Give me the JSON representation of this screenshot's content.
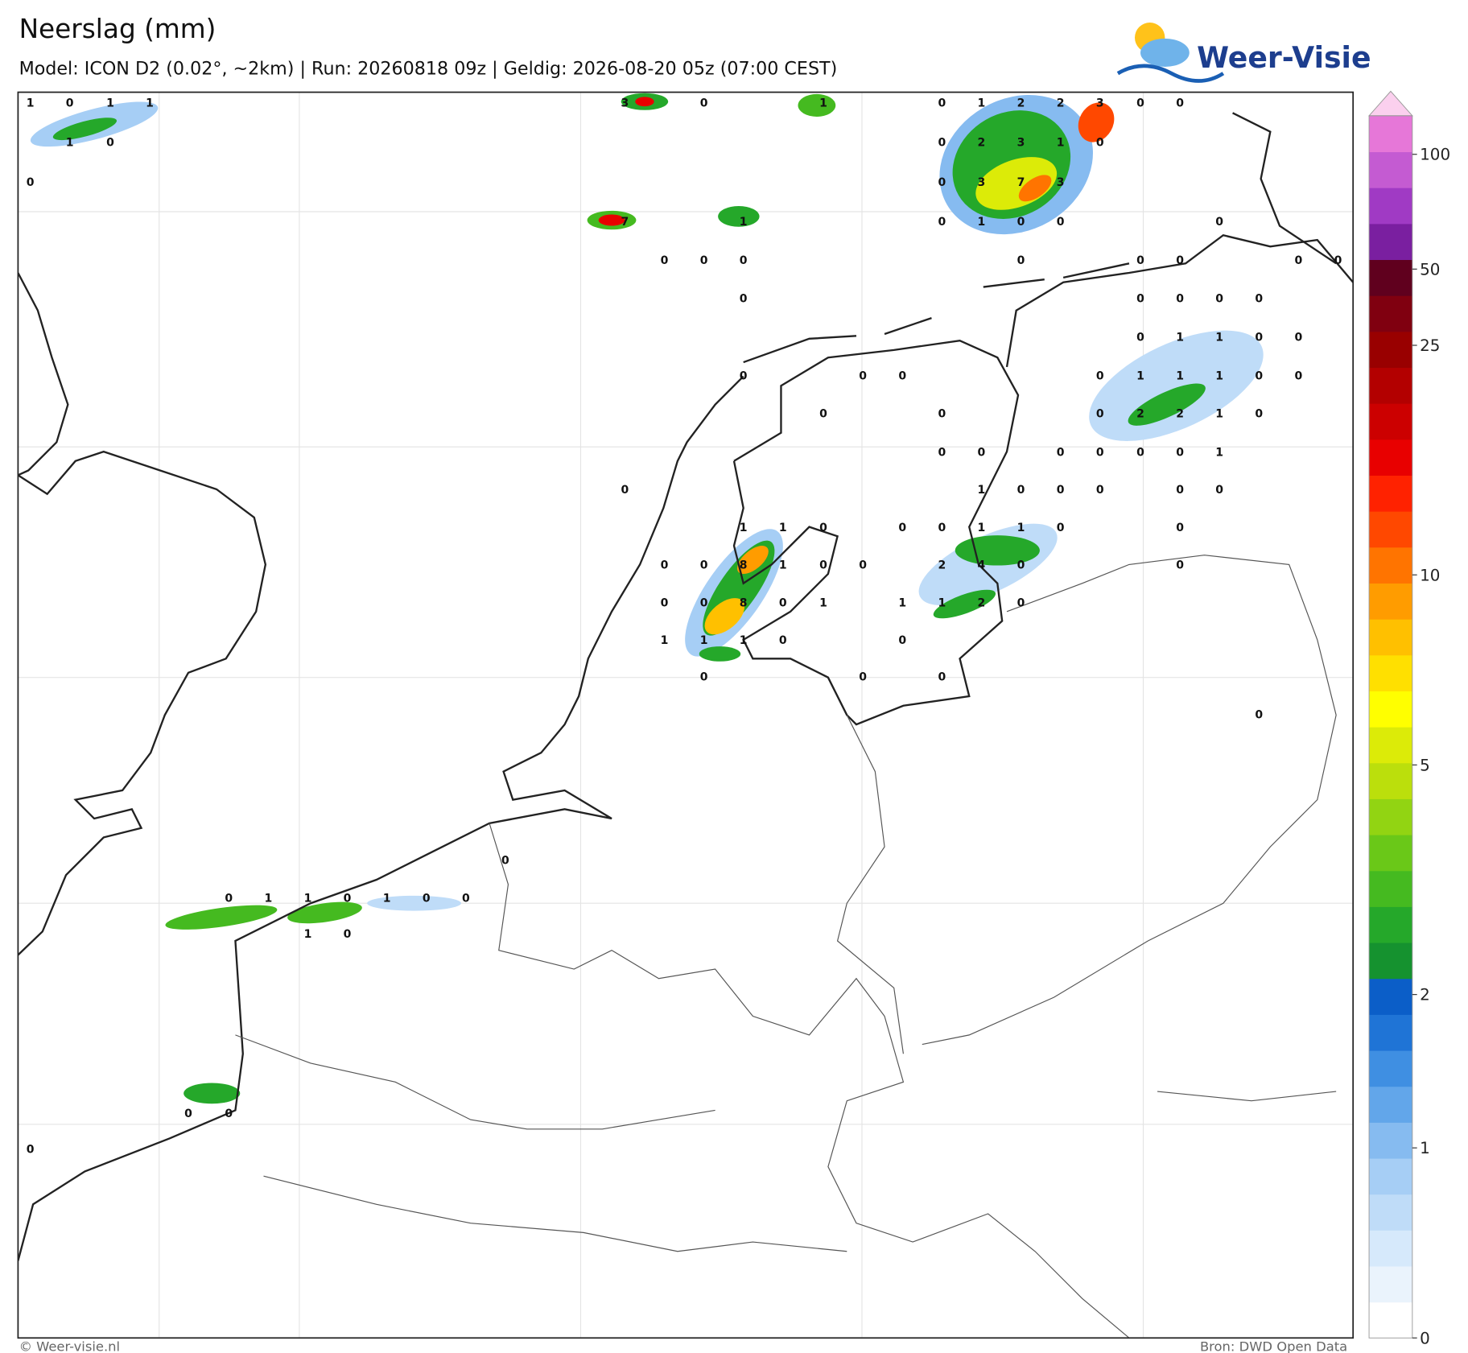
{
  "header": {
    "title": "Neerslag (mm)",
    "subtitle": "Model: ICON D2 (0.02°, ~2km)  |  Run: 20260818 09z  |  Geldig: 2026-08-20 05z (07:00 CEST)",
    "logo": "Weer-Visie"
  },
  "colorbar": {
    "ticks": [
      0,
      1,
      2,
      5,
      10,
      25,
      50,
      100
    ],
    "colors": [
      "#ffffff",
      "#eaf3fc",
      "#d6e9fb",
      "#bfdcf8",
      "#a6cef5",
      "#86bbf0",
      "#62a6ea",
      "#3f8fe2",
      "#1f74d6",
      "#0b5ec8",
      "#15922f",
      "#25a82a",
      "#45ba20",
      "#6ac818",
      "#92d412",
      "#bbdf0c",
      "#dceb08",
      "#ffff00",
      "#ffe000",
      "#ffc000",
      "#ff9c00",
      "#ff7400",
      "#ff4800",
      "#ff2200",
      "#e80000",
      "#cc0000",
      "#b30000",
      "#990000",
      "#800010",
      "#60001e",
      "#7a1fa0",
      "#a03ac4",
      "#c45bd2",
      "#e677d8"
    ],
    "top_color": "#fbd0ee"
  },
  "precip_labels": [
    1,
    0,
    1,
    1,
    3,
    0,
    1,
    0,
    1,
    2,
    2,
    3,
    0,
    0,
    1,
    0,
    0,
    2,
    3,
    1,
    0,
    0,
    0,
    3,
    7,
    3,
    7,
    1,
    0,
    1,
    0,
    0,
    0,
    0,
    0,
    0,
    0,
    0,
    0,
    0,
    0,
    0,
    0,
    0,
    0,
    0,
    0,
    1,
    1,
    0,
    0,
    0,
    0,
    0,
    0,
    1,
    1,
    1,
    0,
    0,
    0,
    0,
    0,
    2,
    2,
    1,
    0,
    0,
    0,
    0,
    0,
    0,
    0,
    1,
    0,
    1,
    0,
    0,
    0,
    0,
    0,
    1,
    1,
    0,
    0,
    0,
    1,
    1,
    0,
    0,
    0,
    0,
    8,
    1,
    0,
    0,
    2,
    4,
    0,
    0,
    0,
    0,
    8,
    0,
    1,
    1,
    1,
    2,
    0,
    1,
    1,
    1,
    0,
    0,
    0,
    0,
    0,
    0,
    0,
    0,
    1,
    1,
    0,
    1,
    0,
    0,
    1,
    0,
    0,
    0,
    0
  ],
  "footer": {
    "left": "© Weer-visie.nl",
    "right": "Bron: DWD Open Data"
  }
}
